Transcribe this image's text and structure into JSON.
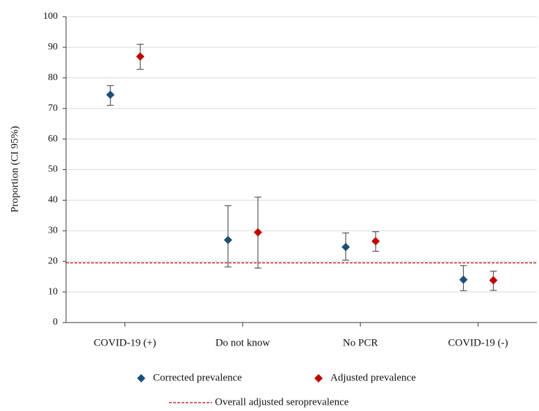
{
  "chart_data": {
    "type": "errorbar",
    "y_label": "Proportion (CI 95%)",
    "categories": [
      "COVID-19 (+)",
      "Do not know",
      "No PCR",
      "COVID-19 (-)"
    ],
    "series": [
      {
        "name": "Corrected prevalence",
        "color": "#1f4e79",
        "values": [
          74.5,
          27,
          24.7,
          14
        ],
        "lower": [
          71,
          18.2,
          20.4,
          10.4
        ],
        "upper": [
          77.5,
          38.2,
          29.3,
          18.6
        ]
      },
      {
        "name": "Adjusted prevalence",
        "color": "#c00000",
        "values": [
          87,
          29.5,
          26.6,
          13.8
        ],
        "lower": [
          82.8,
          17.8,
          23.3,
          10.5
        ],
        "upper": [
          91,
          41,
          29.7,
          16.8
        ]
      }
    ],
    "reference_line": {
      "name": "Overall adjusted seroprevalence",
      "value": 19.5,
      "color": "#c00000"
    },
    "ylim": [
      0,
      100
    ],
    "yticks": [
      0,
      10,
      20,
      30,
      40,
      50,
      60,
      70,
      80,
      90,
      100
    ],
    "grid": true
  }
}
